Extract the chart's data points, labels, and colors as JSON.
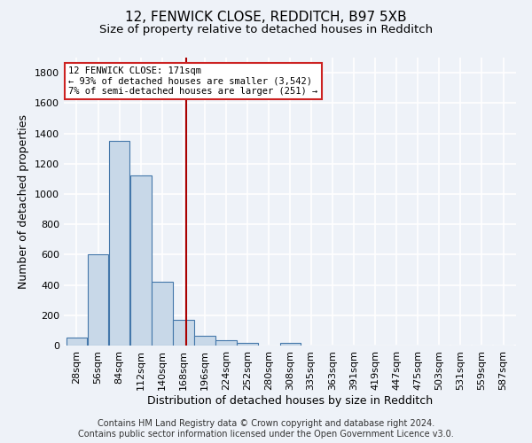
{
  "title1": "12, FENWICK CLOSE, REDDITCH, B97 5XB",
  "title2": "Size of property relative to detached houses in Redditch",
  "xlabel": "Distribution of detached houses by size in Redditch",
  "ylabel": "Number of detached properties",
  "footer1": "Contains HM Land Registry data © Crown copyright and database right 2024.",
  "footer2": "Contains public sector information licensed under the Open Government Licence v3.0.",
  "bin_centers": [
    28,
    56,
    84,
    112,
    140,
    168,
    196,
    224,
    252,
    280,
    308,
    335,
    363,
    391,
    419,
    447,
    475,
    503,
    531,
    559,
    587
  ],
  "bar_heights": [
    50,
    600,
    1350,
    1120,
    420,
    170,
    65,
    35,
    15,
    0,
    15,
    0,
    0,
    0,
    0,
    0,
    0,
    0,
    0,
    0,
    0
  ],
  "bar_color": "#c8d8e8",
  "bar_edge_color": "#4477aa",
  "property_size": 171,
  "vline_color": "#aa0000",
  "annotation_line1": "12 FENWICK CLOSE: 171sqm",
  "annotation_line2": "← 93% of detached houses are smaller (3,542)",
  "annotation_line3": "7% of semi-detached houses are larger (251) →",
  "annotation_box_color": "#ffffff",
  "annotation_box_edge_color": "#cc2222",
  "ylim": [
    0,
    1900
  ],
  "yticks": [
    0,
    200,
    400,
    600,
    800,
    1000,
    1200,
    1400,
    1600,
    1800
  ],
  "background_color": "#eef2f8",
  "grid_color": "#ffffff",
  "title_fontsize": 11,
  "subtitle_fontsize": 9.5,
  "axis_label_fontsize": 9,
  "tick_fontsize": 8,
  "footer_fontsize": 7,
  "bin_width": 28
}
